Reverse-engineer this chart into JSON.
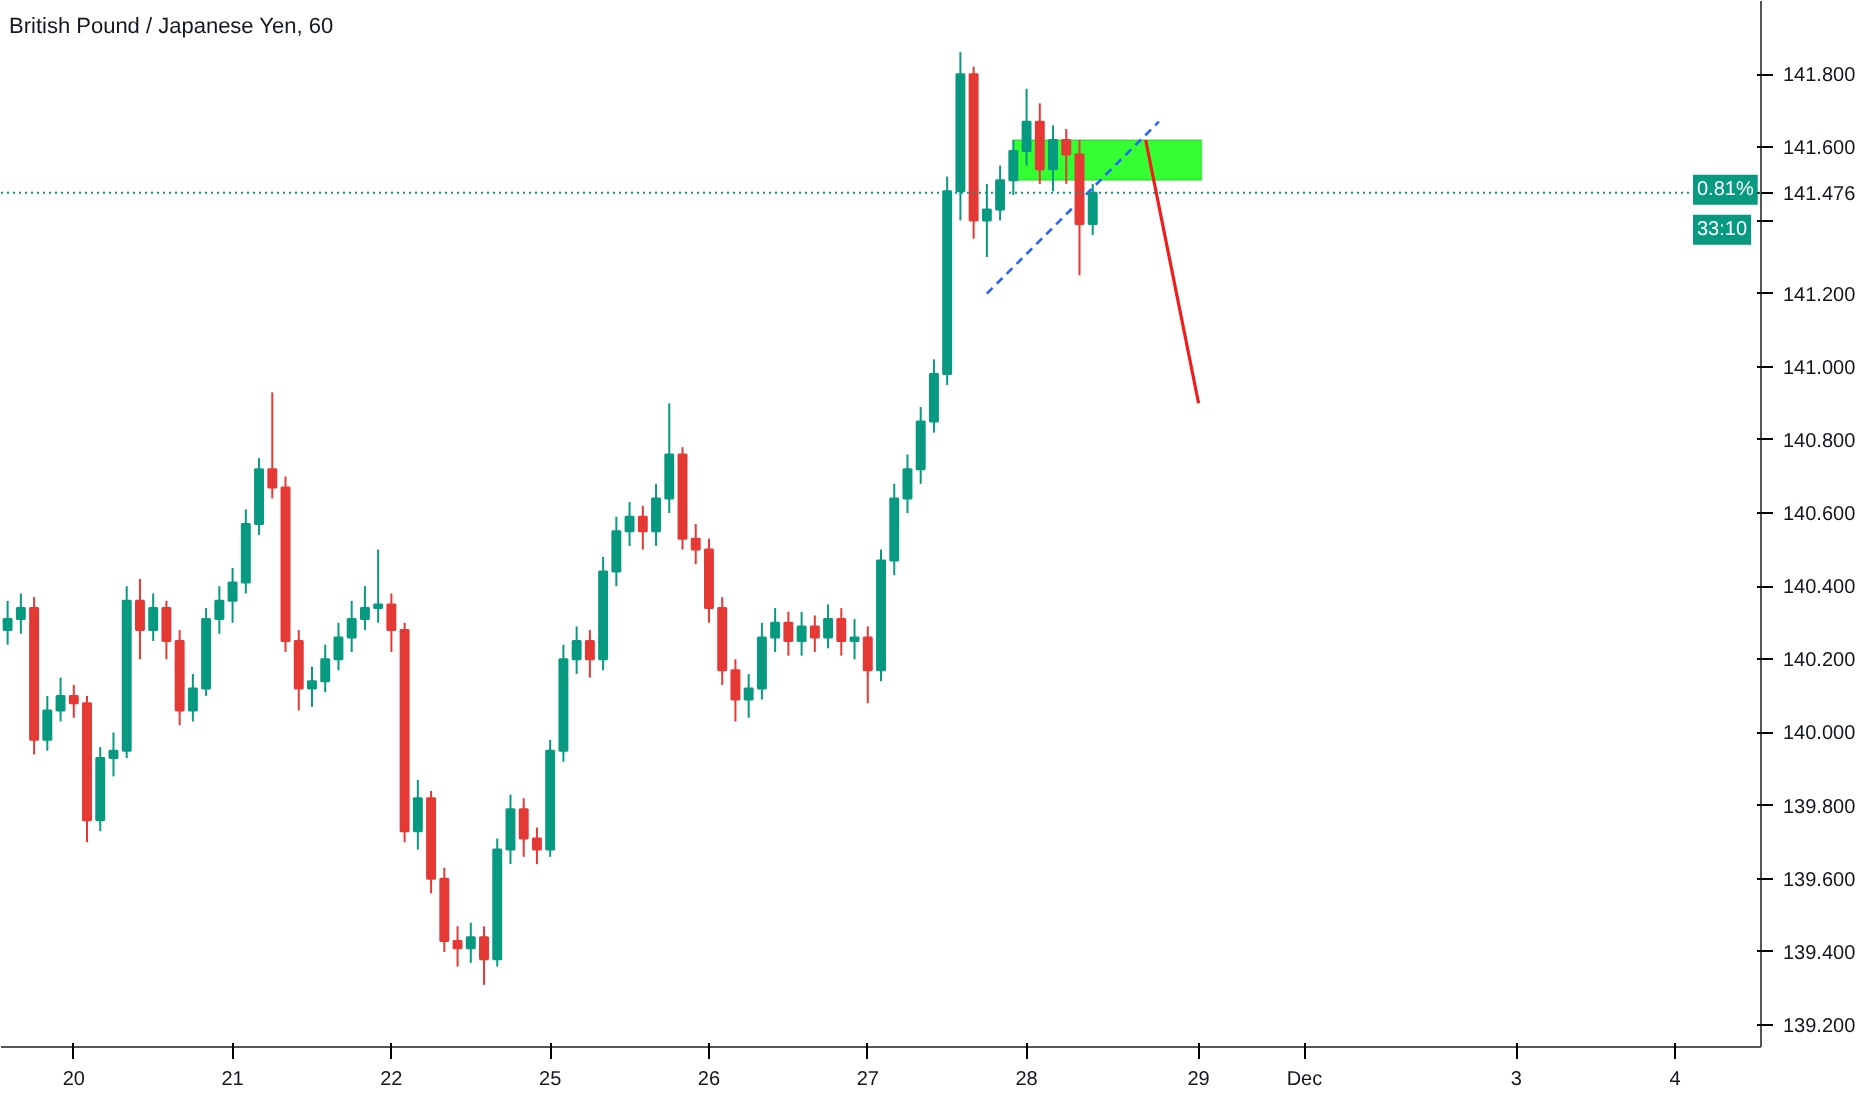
{
  "chart_data": {
    "type": "candlestick",
    "title": "British Pound / Japanese Yen, 60",
    "categories": [
      null,
      null,
      null,
      null,
      null,
      "20",
      null,
      null,
      null,
      null,
      null,
      null,
      null,
      null,
      null,
      null,
      null,
      "21",
      null,
      null,
      null,
      null,
      null,
      null,
      null,
      null,
      null,
      null,
      null,
      "22",
      null,
      null,
      null,
      null,
      null,
      null,
      null,
      null,
      null,
      null,
      null,
      "25",
      null,
      null,
      null,
      null,
      null,
      null,
      null,
      null,
      null,
      null,
      null,
      "26",
      null,
      null,
      null,
      null,
      null,
      null,
      null,
      null,
      null,
      null,
      null,
      "27",
      null,
      null,
      null,
      null,
      null,
      null,
      null,
      null,
      null,
      null,
      null,
      "28",
      null,
      null,
      null,
      null,
      null,
      null,
      null,
      null,
      null,
      null,
      null,
      null,
      "29",
      null,
      null,
      null,
      null,
      null,
      null,
      null,
      "Dec",
      null,
      null,
      null,
      null,
      null,
      null,
      null,
      null,
      null,
      null,
      null,
      null,
      null,
      null,
      null,
      "3",
      null,
      null,
      null,
      null,
      null,
      null,
      null,
      null,
      null,
      null,
      null,
      "4",
      null,
      null,
      null,
      null,
      null,
      null
    ],
    "ohlc": [
      [
        140.28,
        140.36,
        140.24,
        140.31
      ],
      [
        140.31,
        140.38,
        140.27,
        140.34
      ],
      [
        140.34,
        140.37,
        139.94,
        139.98
      ],
      [
        139.98,
        140.1,
        139.95,
        140.06
      ],
      [
        140.06,
        140.15,
        140.03,
        140.1
      ],
      [
        140.1,
        140.13,
        140.04,
        140.08
      ],
      [
        140.08,
        140.1,
        139.7,
        139.76
      ],
      [
        139.76,
        139.96,
        139.73,
        139.93
      ],
      [
        139.93,
        140.0,
        139.88,
        139.95
      ],
      [
        139.95,
        140.4,
        139.93,
        140.36
      ],
      [
        140.36,
        140.42,
        140.2,
        140.28
      ],
      [
        140.28,
        140.38,
        140.25,
        140.34
      ],
      [
        140.34,
        140.36,
        140.2,
        140.25
      ],
      [
        140.25,
        140.28,
        140.02,
        140.06
      ],
      [
        140.06,
        140.16,
        140.03,
        140.12
      ],
      [
        140.12,
        140.34,
        140.1,
        140.31
      ],
      [
        140.31,
        140.4,
        140.27,
        140.36
      ],
      [
        140.36,
        140.45,
        140.3,
        140.41
      ],
      [
        140.41,
        140.61,
        140.38,
        140.57
      ],
      [
        140.57,
        140.75,
        140.54,
        140.72
      ],
      [
        140.72,
        140.93,
        140.64,
        140.67
      ],
      [
        140.67,
        140.7,
        140.22,
        140.25
      ],
      [
        140.25,
        140.28,
        140.06,
        140.12
      ],
      [
        140.12,
        140.18,
        140.07,
        140.14
      ],
      [
        140.14,
        140.24,
        140.11,
        140.2
      ],
      [
        140.2,
        140.3,
        140.17,
        140.26
      ],
      [
        140.26,
        140.36,
        140.22,
        140.31
      ],
      [
        140.31,
        140.4,
        140.28,
        140.34
      ],
      [
        140.34,
        140.5,
        140.3,
        140.35
      ],
      [
        140.35,
        140.38,
        140.22,
        140.28
      ],
      [
        140.28,
        140.3,
        139.7,
        139.73
      ],
      [
        139.73,
        139.87,
        139.68,
        139.82
      ],
      [
        139.82,
        139.84,
        139.56,
        139.6
      ],
      [
        139.6,
        139.63,
        139.4,
        139.43
      ],
      [
        139.43,
        139.47,
        139.36,
        139.41
      ],
      [
        139.41,
        139.48,
        139.37,
        139.44
      ],
      [
        139.44,
        139.47,
        139.31,
        139.38
      ],
      [
        139.38,
        139.71,
        139.36,
        139.68
      ],
      [
        139.68,
        139.83,
        139.64,
        139.79
      ],
      [
        139.79,
        139.82,
        139.66,
        139.71
      ],
      [
        139.71,
        139.74,
        139.64,
        139.68
      ],
      [
        139.68,
        139.98,
        139.66,
        139.95
      ],
      [
        139.95,
        140.24,
        139.92,
        140.2
      ],
      [
        140.2,
        140.29,
        140.16,
        140.25
      ],
      [
        140.25,
        140.28,
        140.15,
        140.2
      ],
      [
        140.2,
        140.48,
        140.17,
        140.44
      ],
      [
        140.44,
        140.59,
        140.4,
        140.55
      ],
      [
        140.55,
        140.63,
        140.51,
        140.59
      ],
      [
        140.59,
        140.62,
        140.5,
        140.55
      ],
      [
        140.55,
        140.68,
        140.51,
        140.64
      ],
      [
        140.64,
        140.9,
        140.6,
        140.76
      ],
      [
        140.76,
        140.78,
        140.5,
        140.53
      ],
      [
        140.53,
        140.57,
        140.46,
        140.5
      ],
      [
        140.5,
        140.53,
        140.3,
        140.34
      ],
      [
        140.34,
        140.37,
        140.13,
        140.17
      ],
      [
        140.17,
        140.2,
        140.03,
        140.09
      ],
      [
        140.09,
        140.16,
        140.04,
        140.12
      ],
      [
        140.12,
        140.3,
        140.09,
        140.26
      ],
      [
        140.26,
        140.34,
        140.22,
        140.3
      ],
      [
        140.3,
        140.33,
        140.21,
        140.25
      ],
      [
        140.25,
        140.33,
        140.21,
        140.29
      ],
      [
        140.29,
        140.32,
        140.22,
        140.26
      ],
      [
        140.26,
        140.35,
        140.23,
        140.31
      ],
      [
        140.31,
        140.34,
        140.21,
        140.25
      ],
      [
        140.25,
        140.31,
        140.2,
        140.26
      ],
      [
        140.26,
        140.29,
        140.08,
        140.17
      ],
      [
        140.17,
        140.5,
        140.14,
        140.47
      ],
      [
        140.47,
        140.68,
        140.43,
        140.64
      ],
      [
        140.64,
        140.76,
        140.6,
        140.72
      ],
      [
        140.72,
        140.89,
        140.68,
        140.85
      ],
      [
        140.85,
        141.02,
        140.82,
        140.98
      ],
      [
        140.98,
        141.52,
        140.95,
        141.48
      ],
      [
        141.48,
        141.86,
        141.4,
        141.8
      ],
      [
        141.8,
        141.82,
        141.35,
        141.4
      ],
      [
        141.4,
        141.5,
        141.3,
        141.43
      ],
      [
        141.43,
        141.55,
        141.4,
        141.51
      ],
      [
        141.51,
        141.62,
        141.47,
        141.59
      ],
      [
        141.59,
        141.76,
        141.55,
        141.67
      ],
      [
        141.67,
        141.72,
        141.5,
        141.54
      ],
      [
        141.54,
        141.66,
        141.48,
        141.62
      ],
      [
        141.62,
        141.65,
        141.5,
        141.58
      ],
      [
        141.58,
        141.62,
        141.25,
        141.39
      ],
      [
        141.39,
        141.5,
        141.36,
        141.476
      ],
      null,
      null,
      null,
      null,
      null,
      null,
      null,
      null,
      null,
      null,
      null,
      null,
      null,
      null,
      null,
      null,
      null,
      null,
      null,
      null,
      null,
      null,
      null,
      null,
      null,
      null,
      null,
      null,
      null,
      null,
      null,
      null,
      null,
      null,
      null,
      null,
      null,
      null,
      null,
      null,
      null,
      null,
      null,
      null,
      null,
      null,
      null,
      null,
      null,
      null
    ],
    "series": [
      {
        "type": "line",
        "color": "#2962ff",
        "line_style": "dashed",
        "values": [
          null,
          null,
          null,
          null,
          null,
          null,
          null,
          null,
          null,
          null,
          null,
          null,
          null,
          null,
          null,
          null,
          null,
          null,
          null,
          null,
          null,
          null,
          null,
          null,
          null,
          null,
          null,
          null,
          null,
          null,
          null,
          null,
          null,
          null,
          null,
          null,
          null,
          null,
          null,
          null,
          null,
          null,
          null,
          null,
          null,
          null,
          null,
          null,
          null,
          null,
          null,
          null,
          null,
          null,
          null,
          null,
          null,
          null,
          null,
          null,
          null,
          null,
          null,
          null,
          null,
          null,
          null,
          null,
          null,
          null,
          null,
          null,
          null,
          null,
          141.2,
          null,
          null,
          null,
          null,
          null,
          null,
          null,
          null,
          null,
          null,
          null,
          null,
          141.67,
          null,
          null,
          null,
          null,
          null,
          null,
          null,
          null,
          null,
          null,
          null,
          null,
          null,
          null,
          null,
          null,
          null,
          null,
          null,
          null,
          null,
          null,
          null,
          null,
          null,
          null,
          null,
          null,
          null,
          null,
          null,
          null,
          null,
          null,
          null,
          null,
          null,
          null,
          null,
          null,
          null,
          null,
          null,
          null,
          null
        ]
      },
      {
        "type": "line",
        "color": "#f01d1d",
        "line_style": "solid",
        "values": [
          null,
          null,
          null,
          null,
          null,
          null,
          null,
          null,
          null,
          null,
          null,
          null,
          null,
          null,
          null,
          null,
          null,
          null,
          null,
          null,
          null,
          null,
          null,
          null,
          null,
          null,
          null,
          null,
          null,
          null,
          null,
          null,
          null,
          null,
          null,
          null,
          null,
          null,
          null,
          null,
          null,
          null,
          null,
          null,
          null,
          null,
          null,
          null,
          null,
          null,
          null,
          null,
          null,
          null,
          null,
          null,
          null,
          null,
          null,
          null,
          null,
          null,
          null,
          null,
          null,
          null,
          null,
          null,
          null,
          null,
          null,
          null,
          null,
          null,
          null,
          null,
          null,
          null,
          null,
          null,
          null,
          null,
          null,
          null,
          null,
          null,
          141.62,
          null,
          null,
          null,
          140.9,
          null,
          null,
          null,
          null,
          null,
          null,
          null,
          null,
          null,
          null,
          null,
          null,
          null,
          null,
          null,
          null,
          null,
          null,
          null,
          null,
          null,
          null,
          null,
          null,
          null,
          null,
          null,
          null,
          null,
          null,
          null,
          null,
          null,
          null,
          null,
          null,
          null,
          null,
          null,
          null,
          null,
          null
        ]
      }
    ],
    "bands": [
      {
        "axis": "y",
        "from": 141.51,
        "to": 141.62,
        "color": "#33ff33"
      }
    ],
    "ref_lines": [
      {
        "axis": "y",
        "value": 141.476,
        "label": "141.476",
        "color": "#089981",
        "line_style": "dotted"
      }
    ],
    "annotations": [
      "0.81%",
      "33:10"
    ],
    "ylim": [
      139.14,
      142.0
    ],
    "yticks": [
      {
        "value": 139.2,
        "label": "139.200"
      },
      {
        "value": 139.4,
        "label": "139.400"
      },
      {
        "value": 139.6,
        "label": "139.600"
      },
      {
        "value": 139.8,
        "label": "139.800"
      },
      {
        "value": 140.0,
        "label": "140.000"
      },
      {
        "value": 140.2,
        "label": "140.200"
      },
      {
        "value": 140.4,
        "label": "140.400"
      },
      {
        "value": 140.6,
        "label": "140.600"
      },
      {
        "value": 140.8,
        "label": "140.800"
      },
      {
        "value": 141.0,
        "label": "141.000"
      },
      {
        "value": 141.2,
        "label": "141.200"
      },
      {
        "value": 141.4,
        "label": null
      },
      {
        "value": 141.6,
        "label": "141.600"
      },
      {
        "value": 141.8,
        "label": "141.800"
      }
    ],
    "grid": false
  }
}
